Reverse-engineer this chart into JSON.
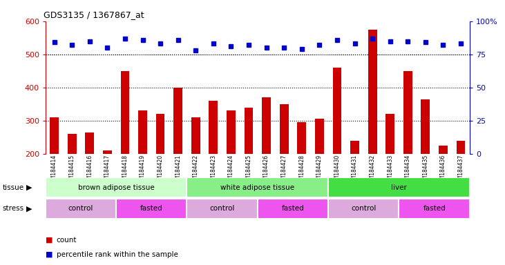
{
  "title": "GDS3135 / 1367867_at",
  "samples": [
    "GSM184414",
    "GSM184415",
    "GSM184416",
    "GSM184417",
    "GSM184418",
    "GSM184419",
    "GSM184420",
    "GSM184421",
    "GSM184422",
    "GSM184423",
    "GSM184424",
    "GSM184425",
    "GSM184426",
    "GSM184427",
    "GSM184428",
    "GSM184429",
    "GSM184430",
    "GSM184431",
    "GSM184432",
    "GSM184433",
    "GSM184434",
    "GSM184435",
    "GSM184436",
    "GSM184437"
  ],
  "counts": [
    310,
    260,
    265,
    210,
    450,
    330,
    320,
    400,
    310,
    360,
    330,
    340,
    370,
    350,
    295,
    305,
    460,
    240,
    575,
    320,
    450,
    365,
    225,
    240
  ],
  "percentile_ranks": [
    84,
    82,
    85,
    80,
    87,
    86,
    83,
    86,
    78,
    83,
    81,
    82,
    80,
    80,
    79,
    82,
    86,
    83,
    87,
    85,
    85,
    84,
    82,
    83
  ],
  "bar_color": "#cc0000",
  "dot_color": "#0000cc",
  "ylim_left": [
    200,
    600
  ],
  "yticks_left": [
    200,
    300,
    400,
    500,
    600
  ],
  "ylim_right": [
    0,
    100
  ],
  "yticks_right": [
    0,
    25,
    50,
    75,
    100
  ],
  "tissue_groups": [
    {
      "label": "brown adipose tissue",
      "start": 0,
      "end": 7,
      "color": "#ccffcc"
    },
    {
      "label": "white adipose tissue",
      "start": 8,
      "end": 15,
      "color": "#88ee88"
    },
    {
      "label": "liver",
      "start": 16,
      "end": 23,
      "color": "#44dd44"
    }
  ],
  "stress_groups": [
    {
      "label": "control",
      "start": 0,
      "end": 3,
      "color": "#ddaadd"
    },
    {
      "label": "fasted",
      "start": 4,
      "end": 7,
      "color": "#ee55ee"
    },
    {
      "label": "control",
      "start": 8,
      "end": 11,
      "color": "#ddaadd"
    },
    {
      "label": "fasted",
      "start": 12,
      "end": 15,
      "color": "#ee55ee"
    },
    {
      "label": "control",
      "start": 16,
      "end": 19,
      "color": "#ddaadd"
    },
    {
      "label": "fasted",
      "start": 20,
      "end": 23,
      "color": "#ee55ee"
    }
  ],
  "legend_count_label": "count",
  "legend_pct_label": "percentile rank within the sample",
  "tissue_label": "tissue",
  "stress_label": "stress",
  "grid_lines": [
    300,
    400,
    500
  ],
  "bar_width": 0.5
}
